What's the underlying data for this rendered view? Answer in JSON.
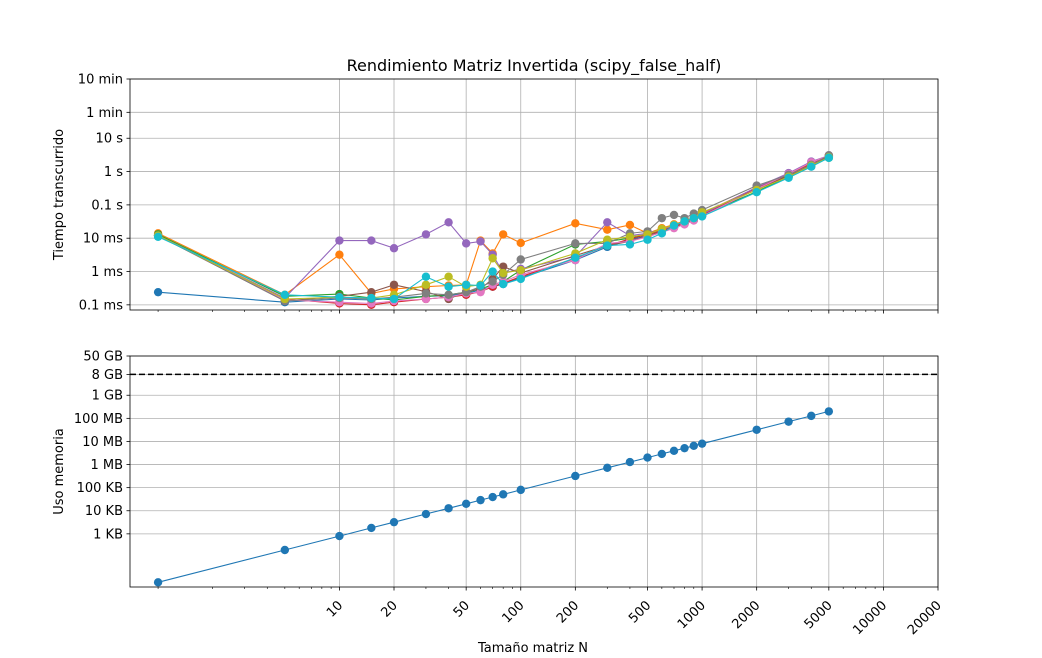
{
  "chart_data": [
    {
      "type": "line",
      "title": "Rendimiento Matriz Invertida (scipy_false_half)",
      "xlabel": "",
      "ylabel": "Tiempo transcurrido",
      "xscale": "log",
      "yscale": "log",
      "xlim": [
        0.7,
        20000
      ],
      "ylim": [
        7e-05,
        600
      ],
      "grid": true,
      "yticks": [
        {
          "value": 0.0001,
          "label": "0.1 ms"
        },
        {
          "value": 0.001,
          "label": "1 ms"
        },
        {
          "value": 0.01,
          "label": "10 ms"
        },
        {
          "value": 0.1,
          "label": "0.1 s"
        },
        {
          "value": 1,
          "label": "1 s"
        },
        {
          "value": 10,
          "label": "10 s"
        },
        {
          "value": 60,
          "label": "1 min"
        },
        {
          "value": 600,
          "label": "10 min"
        }
      ],
      "series": [
        {
          "color": "#1f77b4",
          "x": [
            1,
            5,
            10,
            15,
            20,
            30,
            40,
            50,
            60,
            70,
            80,
            100,
            200,
            300,
            400,
            500,
            600,
            700,
            800,
            900,
            1000,
            2000,
            3000,
            4000,
            5000
          ],
          "y": [
            0.00024,
            0.00012,
            0.00015,
            0.00014,
            0.00016,
            0.00018,
            0.00019,
            0.00022,
            0.00028,
            0.00035,
            0.00042,
            0.00065,
            0.0022,
            0.0055,
            0.009,
            0.012,
            0.016,
            0.021,
            0.027,
            0.035,
            0.048,
            0.3,
            0.75,
            1.6,
            2.9
          ]
        },
        {
          "color": "#ff7f0e",
          "x": [
            1,
            5,
            10,
            15,
            20,
            30,
            40,
            50,
            60,
            70,
            80,
            100,
            200,
            300,
            400,
            500,
            600,
            700,
            800,
            900,
            1000,
            2000,
            3000,
            4000,
            5000
          ],
          "y": [
            0.014,
            0.0002,
            0.0032,
            0.00022,
            0.0003,
            0.00035,
            0.00038,
            0.0004,
            0.0085,
            0.0035,
            0.013,
            0.0072,
            0.028,
            0.018,
            0.025,
            0.014,
            0.02,
            0.026,
            0.033,
            0.042,
            0.055,
            0.33,
            0.85,
            1.8,
            3.0
          ]
        },
        {
          "color": "#2ca02c",
          "x": [
            1,
            5,
            10,
            15,
            20,
            30,
            40,
            50,
            60,
            70,
            80,
            100,
            200,
            300,
            400,
            500,
            600,
            700,
            800,
            900,
            1000,
            2000,
            3000,
            4000,
            5000
          ],
          "y": [
            0.013,
            0.00018,
            0.00021,
            0.00016,
            0.00014,
            0.00018,
            0.0002,
            0.00024,
            0.0003,
            0.0004,
            0.0005,
            0.0011,
            0.0065,
            0.008,
            0.01,
            0.013,
            0.018,
            0.022,
            0.028,
            0.036,
            0.05,
            0.25,
            0.7,
            1.5,
            2.6
          ]
        },
        {
          "color": "#d62728",
          "x": [
            1,
            5,
            10,
            15,
            20,
            30,
            40,
            50,
            60,
            70,
            80,
            100,
            200,
            300,
            400,
            500,
            600,
            700,
            800,
            900,
            1000,
            2000,
            3000,
            4000,
            5000
          ],
          "y": [
            0.012,
            0.00015,
            0.00011,
            0.0001,
            0.00012,
            0.00015,
            0.00017,
            0.0002,
            0.00025,
            0.00035,
            0.00045,
            0.0007,
            0.0025,
            0.006,
            0.0095,
            0.013,
            0.017,
            0.022,
            0.029,
            0.037,
            0.05,
            0.32,
            0.8,
            1.7,
            3.0
          ]
        },
        {
          "color": "#9467bd",
          "x": [
            1,
            5,
            10,
            15,
            20,
            30,
            40,
            50,
            60,
            70,
            80,
            100,
            200,
            300,
            400,
            500,
            600,
            700,
            800,
            900,
            1000,
            2000,
            3000,
            4000,
            5000
          ],
          "y": [
            0.012,
            0.00016,
            0.0085,
            0.0085,
            0.005,
            0.013,
            0.03,
            0.007,
            0.008,
            0.0032,
            0.0009,
            0.0012,
            0.0028,
            0.03,
            0.012,
            0.014,
            0.018,
            0.024,
            0.031,
            0.04,
            0.052,
            0.34,
            0.9,
            2.0,
            3.0
          ]
        },
        {
          "color": "#8c564b",
          "x": [
            1,
            5,
            10,
            15,
            20,
            30,
            40,
            50,
            60,
            70,
            80,
            100,
            200,
            300,
            400,
            500,
            600,
            700,
            800,
            900,
            1000,
            2000,
            3000,
            4000,
            5000
          ],
          "y": [
            0.012,
            0.00013,
            0.00018,
            0.00024,
            0.0004,
            0.00025,
            0.00015,
            0.00025,
            0.0003,
            0.0006,
            0.0014,
            0.0009,
            0.003,
            0.006,
            0.008,
            0.012,
            0.016,
            0.021,
            0.027,
            0.035,
            0.046,
            0.3,
            0.75,
            1.6,
            2.9
          ]
        },
        {
          "color": "#e377c2",
          "x": [
            1,
            5,
            10,
            15,
            20,
            30,
            40,
            50,
            60,
            70,
            80,
            100,
            200,
            300,
            400,
            500,
            600,
            700,
            800,
            900,
            1000,
            2000,
            3000,
            4000,
            5000
          ],
          "y": [
            0.012,
            0.00014,
            0.00012,
            0.00011,
            0.00013,
            0.00015,
            0.00017,
            0.00022,
            0.00024,
            0.0004,
            0.0005,
            0.0008,
            0.0022,
            0.007,
            0.008,
            0.011,
            0.015,
            0.02,
            0.026,
            0.034,
            0.046,
            0.3,
            0.85,
            1.9,
            3.0
          ]
        },
        {
          "color": "#7f7f7f",
          "x": [
            1,
            5,
            10,
            15,
            20,
            30,
            40,
            50,
            60,
            70,
            80,
            100,
            200,
            300,
            400,
            500,
            600,
            700,
            800,
            900,
            1000,
            2000,
            3000,
            4000,
            5000
          ],
          "y": [
            0.012,
            0.00013,
            0.00016,
            0.00015,
            0.00017,
            0.00022,
            0.0002,
            0.00024,
            0.00035,
            0.0005,
            0.0008,
            0.0023,
            0.007,
            0.007,
            0.014,
            0.016,
            0.04,
            0.05,
            0.04,
            0.055,
            0.07,
            0.38,
            0.8,
            1.6,
            3.1
          ]
        },
        {
          "color": "#bcbd22",
          "x": [
            1,
            5,
            10,
            15,
            20,
            30,
            40,
            50,
            60,
            70,
            80,
            100,
            200,
            300,
            400,
            500,
            600,
            700,
            800,
            900,
            1000,
            2000,
            3000,
            4000,
            5000
          ],
          "y": [
            0.012,
            0.00015,
            0.00017,
            0.00016,
            0.0002,
            0.0004,
            0.0007,
            0.00035,
            0.0004,
            0.0025,
            0.0009,
            0.0011,
            0.0035,
            0.009,
            0.011,
            0.013,
            0.019,
            0.025,
            0.032,
            0.04,
            0.06,
            0.28,
            0.7,
            1.5,
            2.7
          ]
        },
        {
          "color": "#17becf",
          "x": [
            1,
            5,
            10,
            15,
            20,
            30,
            40,
            50,
            60,
            70,
            80,
            100,
            200,
            300,
            400,
            500,
            600,
            700,
            800,
            900,
            1000,
            2000,
            3000,
            4000,
            5000
          ],
          "y": [
            0.011,
            0.0002,
            0.00017,
            0.00016,
            0.00015,
            0.0007,
            0.00035,
            0.0004,
            0.00038,
            0.001,
            0.00042,
            0.0006,
            0.0026,
            0.006,
            0.0065,
            0.009,
            0.014,
            0.024,
            0.032,
            0.04,
            0.045,
            0.24,
            0.65,
            1.4,
            2.6
          ]
        }
      ]
    },
    {
      "type": "line",
      "title": "",
      "xlabel": "Tamaño matriz N",
      "ylabel": "Uso memoria",
      "xscale": "log",
      "yscale": "log",
      "xlim": [
        0.7,
        20000
      ],
      "ylim": [
        5,
        50000000000
      ],
      "grid": true,
      "yticks": [
        {
          "value": 1000,
          "label": "1 KB"
        },
        {
          "value": 10000,
          "label": "10 KB"
        },
        {
          "value": 100000,
          "label": "100 KB"
        },
        {
          "value": 1000000,
          "label": "1 MB"
        },
        {
          "value": 10000000,
          "label": "10 MB"
        },
        {
          "value": 100000000,
          "label": "100 MB"
        },
        {
          "value": 1000000000,
          "label": "1 GB"
        },
        {
          "value": 8000000000,
          "label": "8 GB"
        },
        {
          "value": 50000000000,
          "label": "50 GB"
        }
      ],
      "xticks": [
        {
          "value": 10,
          "label": "10"
        },
        {
          "value": 20,
          "label": "20"
        },
        {
          "value": 50,
          "label": "50"
        },
        {
          "value": 100,
          "label": "100"
        },
        {
          "value": 200,
          "label": "200"
        },
        {
          "value": 500,
          "label": "500"
        },
        {
          "value": 1000,
          "label": "1000"
        },
        {
          "value": 2000,
          "label": "2000"
        },
        {
          "value": 5000,
          "label": "5000"
        },
        {
          "value": 10000,
          "label": "10000"
        },
        {
          "value": 20000,
          "label": "20000"
        }
      ],
      "hline": {
        "value": 8000000000,
        "style": "dashed",
        "color": "#000000"
      },
      "series": [
        {
          "color": "#1f77b4",
          "x": [
            1,
            5,
            10,
            15,
            20,
            30,
            40,
            50,
            60,
            70,
            80,
            100,
            200,
            300,
            400,
            500,
            600,
            700,
            800,
            900,
            1000,
            2000,
            3000,
            4000,
            5000
          ],
          "y": [
            8,
            200,
            800,
            1800,
            3200,
            7200,
            12800,
            20000,
            28800,
            39200,
            51200,
            80000,
            320000,
            720000,
            1280000,
            2000000,
            2880000,
            3920000,
            5120000,
            6480000,
            8000000,
            32000000,
            72000000,
            128000000,
            200000000
          ]
        }
      ]
    }
  ]
}
